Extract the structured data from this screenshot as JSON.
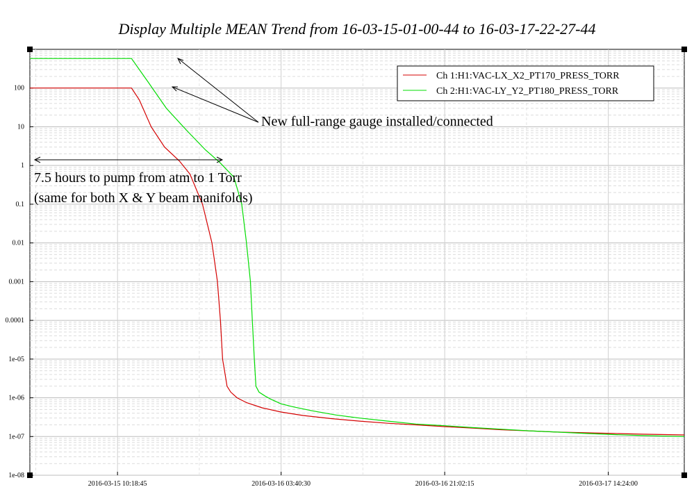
{
  "chart_data": {
    "type": "line",
    "title": "Display Multiple MEAN Trend from 16-03-15-01-00-44 to 16-03-17-22-27-44",
    "xlabel": "",
    "ylabel": "",
    "y_scale": "log",
    "ylim": [
      1e-08,
      1000
    ],
    "y_ticks": [
      {
        "value": 100,
        "label": "100"
      },
      {
        "value": 10,
        "label": "10"
      },
      {
        "value": 1,
        "label": "1"
      },
      {
        "value": 0.1,
        "label": "0.1"
      },
      {
        "value": 0.01,
        "label": "0.01"
      },
      {
        "value": 0.001,
        "label": "0.001"
      },
      {
        "value": 0.0001,
        "label": "0.0001"
      },
      {
        "value": 1e-05,
        "label": "1e-05"
      },
      {
        "value": 1e-06,
        "label": "1e-06"
      },
      {
        "value": 1e-07,
        "label": "1e-07"
      },
      {
        "value": 1e-08,
        "label": "1e-08"
      }
    ],
    "xlim": [
      "2016-03-15 01:00:44",
      "2016-03-17 22:27:44"
    ],
    "x_ticks": [
      {
        "value": "2016-03-15 10:18:45",
        "label": "2016-03-15 10:18:45"
      },
      {
        "value": "2016-03-16 03:40:30",
        "label": "2016-03-16 03:40:30"
      },
      {
        "value": "2016-03-16 21:02:15",
        "label": "2016-03-16 21:02:15"
      },
      {
        "value": "2016-03-17 14:24:00",
        "label": "2016-03-17 14:24:00"
      }
    ],
    "grid": true,
    "legend_position": "top-right",
    "series": [
      {
        "name": "Ch 1:H1:VAC-LX_X2_PT170_PRESS_TORR",
        "color": "#d40000",
        "x": [
          "2016-03-15 01:00:44",
          "2016-03-15 01:18:00",
          "2016-03-15 06:00:00",
          "2016-03-15 10:00:00",
          "2016-03-15 11:48:00",
          "2016-03-15 12:37:00",
          "2016-03-15 13:53:00",
          "2016-03-15 15:18:00",
          "2016-03-15 16:53:00",
          "2016-03-15 18:00:00",
          "2016-03-15 19:20:00",
          "2016-03-15 20:20:00",
          "2016-03-15 20:55:00",
          "2016-03-15 21:14:00",
          "2016-03-15 21:28:00",
          "2016-03-15 21:44:00",
          "2016-03-15 21:56:00",
          "2016-03-15 22:20:00",
          "2016-03-15 23:00:00",
          "2016-03-16 00:00:00",
          "2016-03-16 01:40:00",
          "2016-03-16 03:40:00",
          "2016-03-16 06:00:00",
          "2016-03-16 09:00:00",
          "2016-03-16 12:00:00",
          "2016-03-16 15:00:00",
          "2016-03-16 18:00:00",
          "2016-03-16 21:00:00",
          "2016-03-17 00:00:00",
          "2016-03-17 03:00:00",
          "2016-03-17 06:00:00",
          "2016-03-17 09:00:00",
          "2016-03-17 12:00:00",
          "2016-03-17 15:00:00",
          "2016-03-17 18:00:00",
          "2016-03-17 22:27:44"
        ],
        "y": [
          100,
          100,
          100,
          100,
          100,
          50,
          10,
          3,
          1.3,
          0.6,
          0.1,
          0.01,
          0.001,
          0.0001,
          1e-05,
          4e-06,
          2e-06,
          1.4e-06,
          1e-06,
          7.5e-07,
          5.5e-07,
          4.3e-07,
          3.5e-07,
          2.9e-07,
          2.5e-07,
          2.2e-07,
          2e-07,
          1.8e-07,
          1.65e-07,
          1.5e-07,
          1.4e-07,
          1.3e-07,
          1.25e-07,
          1.2e-07,
          1.15e-07,
          1.1e-07
        ]
      },
      {
        "name": "Ch 2:H1:VAC-LY_Y2_PT180_PRESS_TORR",
        "color": "#00dd00",
        "x": [
          "2016-03-15 01:00:44",
          "2016-03-15 06:00:00",
          "2016-03-15 10:00:00",
          "2016-03-15 11:48:00",
          "2016-03-15 13:30:00",
          "2016-03-15 15:30:00",
          "2016-03-15 17:40:00",
          "2016-03-15 19:40:00",
          "2016-03-15 21:10:00",
          "2016-03-15 22:40:00",
          "2016-03-15 23:30:00",
          "2016-03-16 00:00:00",
          "2016-03-16 00:25:00",
          "2016-03-16 00:37:00",
          "2016-03-16 00:50:00",
          "2016-03-16 01:00:00",
          "2016-03-16 01:20:00",
          "2016-03-16 02:00:00",
          "2016-03-16 02:40:00",
          "2016-03-16 03:40:00",
          "2016-03-16 05:00:00",
          "2016-03-16 07:00:00",
          "2016-03-16 09:30:00",
          "2016-03-16 12:00:00",
          "2016-03-16 15:00:00",
          "2016-03-16 18:00:00",
          "2016-03-16 21:00:00",
          "2016-03-17 00:00:00",
          "2016-03-17 03:00:00",
          "2016-03-17 06:00:00",
          "2016-03-17 09:00:00",
          "2016-03-17 12:00:00",
          "2016-03-17 15:00:00",
          "2016-03-17 18:00:00",
          "2016-03-17 22:27:44"
        ],
        "y": [
          580,
          580,
          580,
          580,
          150,
          30,
          8,
          2.5,
          1.2,
          0.5,
          0.1,
          0.01,
          0.001,
          0.0001,
          1e-05,
          2e-06,
          1.4e-06,
          1.1e-06,
          9e-07,
          7e-07,
          5.8e-07,
          4.6e-07,
          3.6e-07,
          3e-07,
          2.5e-07,
          2.1e-07,
          1.9e-07,
          1.7e-07,
          1.55e-07,
          1.4e-07,
          1.3e-07,
          1.2e-07,
          1.12e-07,
          1.06e-07,
          1e-07
        ]
      }
    ],
    "annotations": [
      {
        "id": "gauge",
        "text": "New full-range gauge installed/connected"
      },
      {
        "id": "pump_line1",
        "text": "7.5 hours to pump from atm to 1 Torr"
      },
      {
        "id": "pump_line2",
        "text": "(same for both X & Y beam manifolds)"
      }
    ]
  }
}
